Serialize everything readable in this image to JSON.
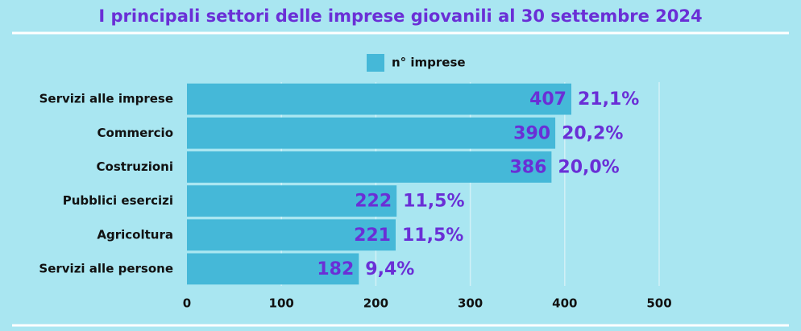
{
  "chart_data": {
    "type": "bar",
    "orientation": "horizontal",
    "title": "I principali settori  delle imprese giovanili  al 30 settembre  2024",
    "categories": [
      "Servizi alle imprese",
      "Commercio",
      "Costruzioni",
      "Pubblici esercizi",
      "Agricoltura",
      "Servizi alle persone"
    ],
    "series": [
      {
        "name": "n° imprese",
        "color": "#45b8d8",
        "values": [
          407,
          390,
          386,
          222,
          221,
          182
        ]
      }
    ],
    "shares": [
      "21,1%",
      "20,2%",
      "20,0%",
      "11,5%",
      "11,5%",
      "9,4%"
    ],
    "xlim": [
      0,
      500
    ],
    "xticks": [
      0,
      100,
      200,
      300,
      400,
      500
    ],
    "grid": true
  }
}
